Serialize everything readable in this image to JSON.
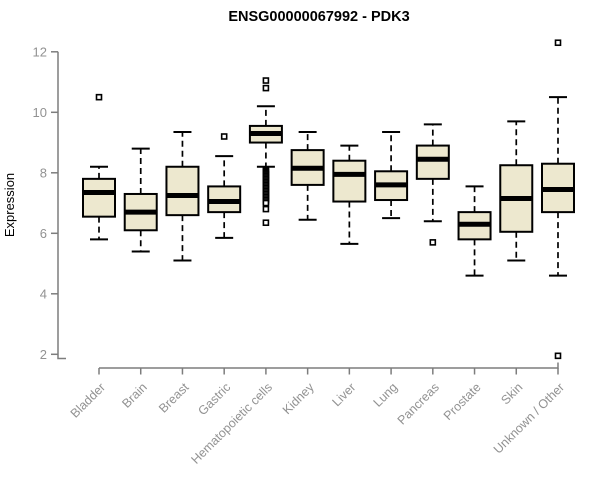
{
  "colors": {
    "background": "#ffffff",
    "box_fill": "#EDE8CF",
    "box_stroke": "#000000",
    "median_stroke": "#000000",
    "whisker_stroke": "#000000",
    "outlier_stroke": "#000000",
    "outlier_fill": "#ffffff",
    "axis_line": "#7d7d7d",
    "tick_text": "#929292",
    "title_text": "#000000"
  },
  "chart_data": {
    "type": "boxplot",
    "title": "ENSG00000067992 - PDK3",
    "xlabel": "",
    "ylabel": "Expression",
    "ylim": [
      2,
      12
    ],
    "y_ticks": [
      2,
      4,
      6,
      8,
      10,
      12
    ],
    "grid": false,
    "legend": "none",
    "categories": [
      "Bladder",
      "Brain",
      "Breast",
      "Gastric",
      "Hematopoietic cells",
      "Kidney",
      "Liver",
      "Lung",
      "Pancreas",
      "Prostate",
      "Skin",
      "Unknown / Other"
    ],
    "series": [
      {
        "name": "Bladder",
        "low": 5.8,
        "q1": 6.55,
        "median": 7.35,
        "q3": 7.8,
        "high": 8.2,
        "outliers": [
          10.5
        ]
      },
      {
        "name": "Brain",
        "low": 5.4,
        "q1": 6.1,
        "median": 6.7,
        "q3": 7.3,
        "high": 8.8,
        "outliers": []
      },
      {
        "name": "Breast",
        "low": 5.1,
        "q1": 6.6,
        "median": 7.25,
        "q3": 8.2,
        "high": 9.35,
        "outliers": []
      },
      {
        "name": "Gastric",
        "low": 5.85,
        "q1": 6.7,
        "median": 7.05,
        "q3": 7.55,
        "high": 8.55,
        "outliers": [
          9.2
        ]
      },
      {
        "name": "Hematopoietic cells",
        "low": 8.2,
        "q1": 9.0,
        "median": 9.3,
        "q3": 9.55,
        "high": 10.2,
        "outliers": [
          11.05,
          10.8,
          8.1,
          8.05,
          8.0,
          7.95,
          7.9,
          7.85,
          7.8,
          7.75,
          7.7,
          7.65,
          7.6,
          7.55,
          7.5,
          7.45,
          7.4,
          7.35,
          7.3,
          7.25,
          7.2,
          7.15,
          7.1,
          7.05,
          7.0,
          6.8,
          6.35
        ]
      },
      {
        "name": "Kidney",
        "low": 6.45,
        "q1": 7.6,
        "median": 8.15,
        "q3": 8.75,
        "high": 9.35,
        "outliers": []
      },
      {
        "name": "Liver",
        "low": 5.65,
        "q1": 7.05,
        "median": 7.95,
        "q3": 8.4,
        "high": 8.9,
        "outliers": []
      },
      {
        "name": "Lung",
        "low": 6.5,
        "q1": 7.1,
        "median": 7.6,
        "q3": 8.05,
        "high": 9.35,
        "outliers": []
      },
      {
        "name": "Pancreas",
        "low": 6.4,
        "q1": 7.8,
        "median": 8.45,
        "q3": 8.9,
        "high": 9.6,
        "outliers": [
          5.7
        ]
      },
      {
        "name": "Prostate",
        "low": 4.6,
        "q1": 5.8,
        "median": 6.3,
        "q3": 6.7,
        "high": 7.55,
        "outliers": []
      },
      {
        "name": "Skin",
        "low": 5.1,
        "q1": 6.05,
        "median": 7.15,
        "q3": 8.25,
        "high": 9.7,
        "outliers": []
      },
      {
        "name": "Unknown / Other",
        "low": 4.6,
        "q1": 6.7,
        "median": 7.45,
        "q3": 8.3,
        "high": 10.5,
        "outliers": [
          12.3,
          1.95
        ]
      }
    ]
  }
}
